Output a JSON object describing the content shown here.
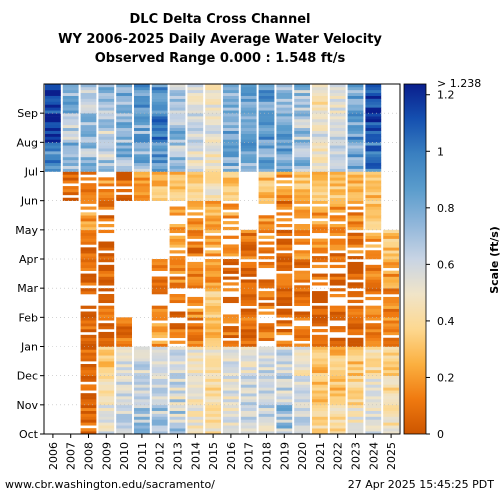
{
  "chart_data": {
    "type": "heatmap",
    "title": [
      "DLC Delta Cross Channel",
      "WY 2006-2025 Daily Average Water Velocity",
      "Observed Range 0.000 : 1.548 ft/s"
    ],
    "xlabel": "",
    "ylabel": "",
    "x_categories": [
      "2006",
      "2007",
      "2008",
      "2009",
      "2010",
      "2011",
      "2012",
      "2013",
      "2014",
      "2015",
      "2016",
      "2017",
      "2018",
      "2019",
      "2020",
      "2021",
      "2022",
      "2023",
      "2024",
      "2025"
    ],
    "y_ticks": [
      "Oct",
      "Nov",
      "Dec",
      "Jan",
      "Feb",
      "Mar",
      "Apr",
      "May",
      "Jun",
      "Jul",
      "Aug",
      "Sep"
    ],
    "colorbar": {
      "label": "Scale (ft/s)",
      "ticks": [
        "0",
        "0.2",
        "0.4",
        "0.6",
        "0.8",
        "1",
        "1.2"
      ],
      "max_label": "> 1.238",
      "range": [
        0,
        1.238
      ],
      "colors": [
        "#cc5500",
        "#f07a10",
        "#fbb040",
        "#fdd890",
        "#f0e4c8",
        "#c8d4e4",
        "#90b6da",
        "#5a9ccc",
        "#3a80c0",
        "#1550b0",
        "#0a1e8c"
      ]
    },
    "grid": true,
    "month_profile_by_year": {
      "note_units": "ft/s",
      "2006": [
        null,
        null,
        null,
        null,
        null,
        null,
        null,
        null,
        null,
        0.9,
        1.2,
        1.15
      ],
      "2007": [
        null,
        null,
        null,
        null,
        null,
        null,
        null,
        null,
        0.05,
        0.75,
        0.7,
        0.8
      ],
      "2008": [
        0.05,
        0.05,
        0.05,
        0.05,
        0.05,
        0.05,
        0.1,
        0.2,
        0.1,
        0.7,
        0.72,
        0.7
      ],
      "2009": [
        0.55,
        0.45,
        0.3,
        0.05,
        0.05,
        0.05,
        0.05,
        0.1,
        0.2,
        0.65,
        0.65,
        0.7
      ],
      "2010": [
        0.6,
        0.6,
        0.55,
        0.1,
        null,
        null,
        null,
        null,
        0.1,
        0.75,
        0.75,
        0.8
      ],
      "2011": [
        0.7,
        0.6,
        0.6,
        null,
        null,
        null,
        null,
        null,
        0.2,
        0.75,
        0.8,
        0.85
      ],
      "2012": [
        0.65,
        0.6,
        0.6,
        0.2,
        0.1,
        0.1,
        null,
        null,
        0.3,
        0.9,
        1.05,
        0.9
      ],
      "2013": [
        0.65,
        0.62,
        0.6,
        0.1,
        0.1,
        0.15,
        0.2,
        0.2,
        0.3,
        0.7,
        0.75,
        0.7
      ],
      "2014": [
        0.5,
        0.45,
        0.5,
        0.1,
        0.15,
        0.15,
        0.1,
        0.2,
        0.35,
        0.55,
        0.6,
        0.55
      ],
      "2015": [
        0.45,
        0.4,
        0.45,
        0.25,
        0.35,
        0.2,
        0.2,
        0.25,
        0.45,
        0.5,
        0.55,
        0.5
      ],
      "2016": [
        0.55,
        0.55,
        0.55,
        0.1,
        0.1,
        0.1,
        0.15,
        0.2,
        0.3,
        0.75,
        0.8,
        0.8
      ],
      "2017": [
        0.6,
        0.6,
        0.55,
        0.1,
        0.05,
        0.05,
        0.1,
        null,
        null,
        0.8,
        0.8,
        0.8
      ],
      "2018": [
        0.65,
        0.6,
        0.6,
        0.1,
        0.1,
        0.1,
        0.15,
        0.2,
        0.3,
        0.8,
        0.85,
        0.85
      ],
      "2019": [
        0.7,
        0.65,
        0.6,
        0.1,
        0.05,
        0.05,
        0.05,
        0.1,
        0.2,
        0.85,
        0.85,
        0.8
      ],
      "2020": [
        0.6,
        0.55,
        0.5,
        0.1,
        0.05,
        0.1,
        0.15,
        0.2,
        0.3,
        0.7,
        0.7,
        0.7
      ],
      "2021": [
        0.4,
        0.3,
        0.3,
        0.05,
        0.05,
        0.1,
        0.15,
        0.2,
        0.3,
        0.5,
        0.55,
        0.45
      ],
      "2022": [
        0.4,
        0.3,
        0.3,
        0.05,
        0.05,
        0.05,
        0.1,
        0.2,
        0.3,
        0.6,
        0.6,
        0.55
      ],
      "2023": [
        0.5,
        0.4,
        0.3,
        0.05,
        0.05,
        0.05,
        0.1,
        0.15,
        0.25,
        0.8,
        0.85,
        0.8
      ],
      "2024": [
        0.55,
        0.5,
        0.4,
        0.1,
        0.1,
        0.15,
        0.2,
        0.3,
        0.3,
        1.0,
        1.15,
        1.1
      ],
      "2025": [
        0.45,
        0.4,
        0.35,
        0.15,
        0.15,
        0.2,
        0.3,
        null,
        null,
        null,
        null,
        null
      ]
    }
  },
  "footer": {
    "left": "www.cbr.washington.edu/sacramento/",
    "right": "27 Apr 2025 15:45:25 PDT"
  }
}
